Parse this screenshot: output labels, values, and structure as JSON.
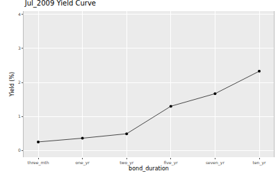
{
  "chart_data": {
    "type": "line",
    "title": "Jul_2009 Yield Curve",
    "x_label": "bond_duration",
    "y_label": "Yield (%)",
    "categories": [
      "three_mth",
      "one_yr",
      "two_yr",
      "five_yr",
      "seven_yr",
      "ten_yr"
    ],
    "values": [
      0.25,
      0.36,
      0.49,
      1.3,
      1.67,
      2.33
    ],
    "color": "#000000",
    "marker": "circle",
    "line_style": "solid",
    "ylim": [
      -0.2,
      4.1
    ],
    "yticks": [
      0,
      1,
      2,
      3,
      4
    ],
    "grid": true
  }
}
